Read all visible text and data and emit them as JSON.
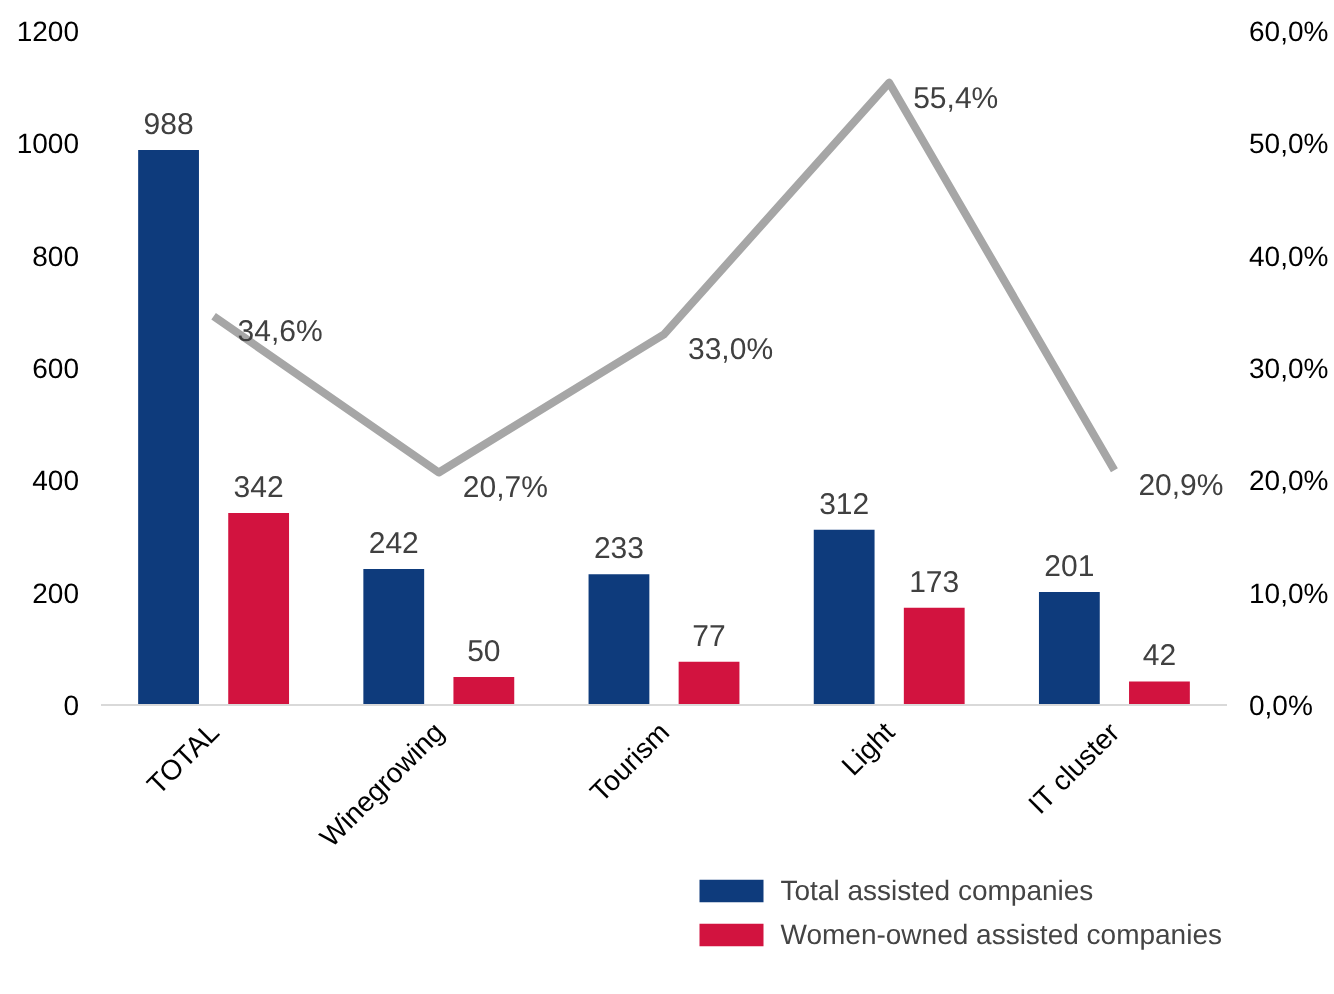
{
  "chart_data": {
    "type": "bar",
    "categories": [
      "TOTAL",
      "Winegrowing",
      "Tourism",
      "Light",
      "IT cluster"
    ],
    "series": [
      {
        "name": "Total assisted companies",
        "color": "#0e3b7c",
        "values": [
          988,
          242,
          233,
          312,
          201
        ]
      },
      {
        "name": "Women-owned assisted companies",
        "color": "#d2133f",
        "values": [
          342,
          50,
          77,
          173,
          42
        ]
      },
      {
        "type": "line",
        "axis": "y2",
        "color": "#a6a6a6",
        "values": [
          34.6,
          20.7,
          33.0,
          55.4,
          20.9
        ],
        "value_labels": [
          "34,6%",
          "20,7%",
          "33,0%",
          "55,4%",
          "20,9%"
        ]
      }
    ],
    "ylim": [
      0,
      1200
    ],
    "yticks": [
      0,
      200,
      400,
      600,
      800,
      1000,
      1200
    ],
    "y2lim": [
      0,
      60
    ],
    "y2ticks": [
      {
        "value": 0,
        "label": "0,0%"
      },
      {
        "value": 10,
        "label": "10,0%"
      },
      {
        "value": 20,
        "label": "20,0%"
      },
      {
        "value": 30,
        "label": "30,0%"
      },
      {
        "value": 40,
        "label": "40,0%"
      },
      {
        "value": 50,
        "label": "50,0%"
      },
      {
        "value": 60,
        "label": "60,0%"
      }
    ],
    "data_labels": true,
    "grid": false,
    "legend": "bottom right"
  }
}
